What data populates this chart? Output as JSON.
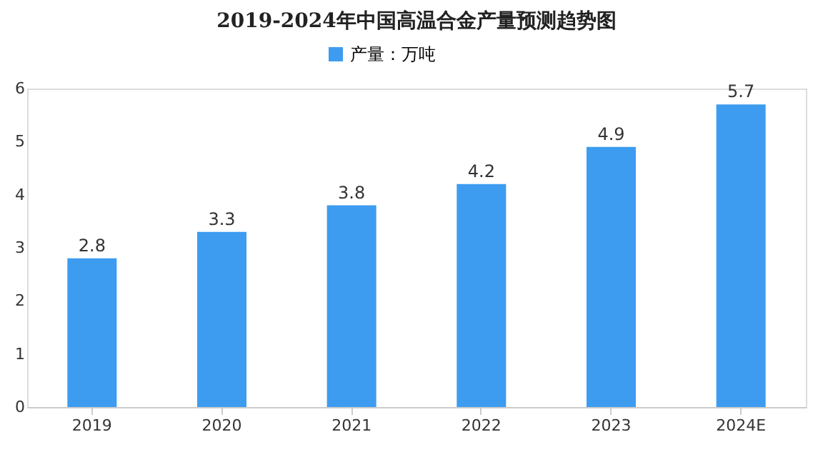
{
  "chart_data": {
    "type": "bar",
    "title": "2019-2024年中国高温合金产量预测趋势图",
    "categories": [
      "2019",
      "2020",
      "2021",
      "2022",
      "2023",
      "2024E"
    ],
    "series": [
      {
        "name": "产量：万吨",
        "color": "#3d9cf0",
        "values": [
          2.8,
          3.3,
          3.8,
          4.2,
          4.9,
          5.7
        ]
      }
    ],
    "ylim": [
      0,
      6
    ],
    "yticks": [
      0,
      1,
      2,
      3,
      4,
      5,
      6
    ],
    "grid": false,
    "legend": "top",
    "data_labels": true
  }
}
